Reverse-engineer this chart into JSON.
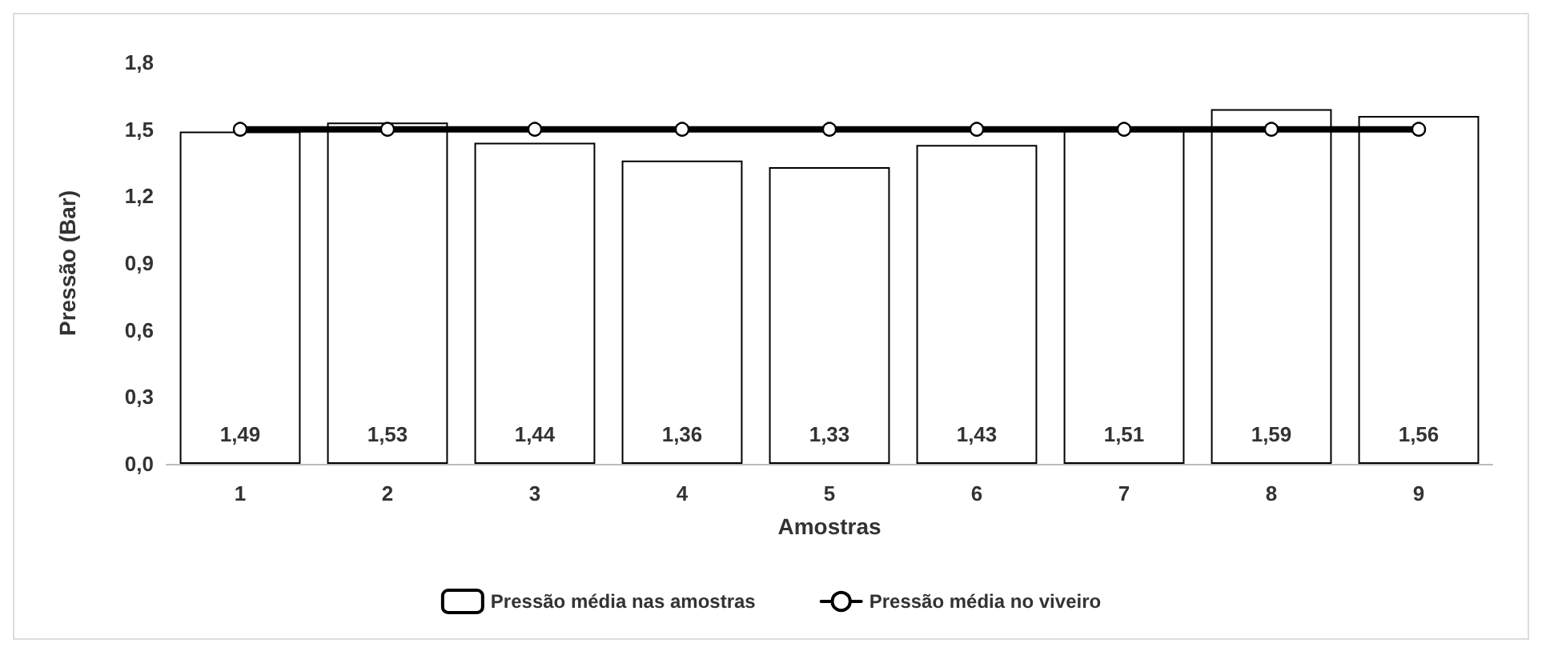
{
  "chart_data": {
    "type": "bar",
    "xlabel": "Amostras",
    "ylabel": "Pressão (Bar)",
    "categories": [
      "1",
      "2",
      "3",
      "4",
      "5",
      "6",
      "7",
      "8",
      "9"
    ],
    "series": [
      {
        "name": "Pressão média nas amostras",
        "color": "#ffffff",
        "values": [
          1.49,
          1.53,
          1.44,
          1.36,
          1.33,
          1.43,
          1.51,
          1.59,
          1.56
        ],
        "value_labels": [
          "1,49",
          "1,53",
          "1,44",
          "1,36",
          "1,33",
          "1,43",
          "1,51",
          "1,59",
          "1,56"
        ]
      },
      {
        "name": "Pressão média no viveiro",
        "type": "line",
        "color": "#000000",
        "marker": "circle",
        "line_style": "solid",
        "values": [
          1.5,
          1.5,
          1.5,
          1.5,
          1.5,
          1.5,
          1.5,
          1.5,
          1.5
        ]
      }
    ],
    "ylim": [
      0,
      1.8
    ],
    "yticks": [
      {
        "value": 0,
        "label": "0,0"
      },
      {
        "value": 0.3,
        "label": "0,3"
      },
      {
        "value": 0.6,
        "label": "0,6"
      },
      {
        "value": 0.9,
        "label": "0,9"
      },
      {
        "value": 1.2,
        "label": "1,2"
      },
      {
        "value": 1.5,
        "label": "1,5"
      },
      {
        "value": 1.8,
        "label": "1,8"
      }
    ],
    "grid": false,
    "legend": "bottom"
  }
}
